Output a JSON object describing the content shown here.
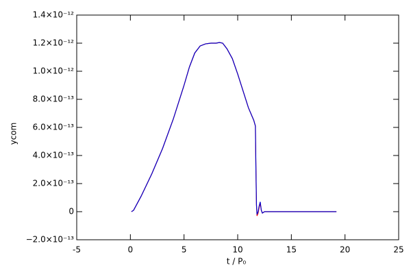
{
  "chart_data": {
    "type": "line",
    "xlabel": "t / P₀",
    "ylabel": "ycom",
    "x": [
      0.1,
      0.3,
      1,
      2,
      3,
      4,
      5,
      5.5,
      6,
      6.5,
      7,
      7.5,
      8,
      8.3,
      8.6,
      9,
      9.5,
      10,
      10.5,
      11,
      11.5,
      11.65,
      11.7,
      11.75,
      11.8,
      11.9,
      12.0,
      12.1,
      12.2,
      12.3,
      12.5,
      13,
      15,
      19.2
    ],
    "series": [
      {
        "color": "#ff0000",
        "values": [
          0,
          1e-14,
          1.1e-13,
          2.7e-13,
          4.5e-13,
          6.6e-13,
          9e-13,
          1.03e-12,
          1.13e-12,
          1.18e-12,
          1.195e-12,
          1.2e-12,
          1.2e-12,
          1.205e-12,
          1.2e-12,
          1.16e-12,
          1.09e-12,
          9.8e-13,
          8.6e-13,
          7.4e-13,
          6.5e-13,
          6.1e-13,
          3e-13,
          5e-14,
          -3e-14,
          -1e-14,
          3e-14,
          6e-14,
          1e-14,
          -1e-14,
          0,
          0,
          0,
          0
        ]
      },
      {
        "color": "#0000cc",
        "values": [
          0,
          1e-14,
          1.1e-13,
          2.7e-13,
          4.5e-13,
          6.6e-13,
          9e-13,
          1.03e-12,
          1.13e-12,
          1.18e-12,
          1.195e-12,
          1.2e-12,
          1.2e-12,
          1.205e-12,
          1.2e-12,
          1.16e-12,
          1.09e-12,
          9.8e-13,
          8.6e-13,
          7.4e-13,
          6.5e-13,
          6.1e-13,
          3e-13,
          5e-14,
          -2e-14,
          0,
          4e-14,
          7e-14,
          1e-14,
          -1e-14,
          0,
          0,
          0,
          0
        ]
      }
    ],
    "xlim": [
      -5,
      25
    ],
    "xticks": [
      -5,
      0,
      5,
      10,
      15,
      20,
      25
    ],
    "ylim": [
      -2e-13,
      1.4e-12
    ],
    "yticks": [
      {
        "value": -2e-13,
        "label": "−2.0×10⁻¹³"
      },
      0,
      {
        "value": 2e-13,
        "label": "2.0×10⁻¹³"
      },
      {
        "value": 4e-13,
        "label": "4.0×10⁻¹³"
      },
      {
        "value": 6e-13,
        "label": "6.0×10⁻¹³"
      },
      {
        "value": 8e-13,
        "label": "8.0×10⁻¹³"
      },
      {
        "value": 1e-12,
        "label": "1.0×10⁻¹²"
      },
      {
        "value": 1.2e-12,
        "label": "1.2×10⁻¹²"
      },
      {
        "value": 1.4e-12,
        "label": "1.4×10⁻¹²"
      }
    ]
  }
}
